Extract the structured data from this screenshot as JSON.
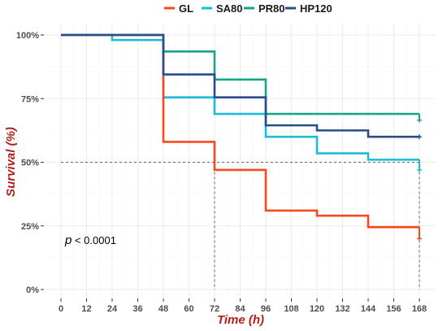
{
  "chart_data": {
    "type": "line",
    "subtype": "kaplan-meier step",
    "title": "",
    "xlabel": "Time (h)",
    "ylabel": "Survival (%)",
    "xlim": [
      0,
      168
    ],
    "ylim": [
      0,
      1
    ],
    "x_ticks": [
      0,
      12,
      24,
      36,
      48,
      60,
      72,
      84,
      96,
      108,
      120,
      132,
      144,
      156,
      168
    ],
    "x_tick_labels": [
      "0",
      "12",
      "24",
      "36",
      "48",
      "60",
      "72",
      "84",
      "96",
      "108",
      "120",
      "132",
      "144",
      "156",
      "168"
    ],
    "y_ticks": [
      0,
      0.25,
      0.5,
      0.75,
      1.0
    ],
    "y_tick_labels": [
      "0%",
      "25%",
      "50%",
      "75%",
      "100%"
    ],
    "grid": true,
    "legend_position": "top",
    "annotation": {
      "p_prefix": "p",
      "p_rest": " < 0.0001"
    },
    "median_reference": {
      "y": 0.5,
      "x_values": [
        72,
        168
      ]
    },
    "series": [
      {
        "name": "GL",
        "color": "#F8481C",
        "steps": [
          [
            0,
            1.0
          ],
          [
            48,
            0.58
          ],
          [
            72,
            0.47
          ],
          [
            96,
            0.31
          ],
          [
            120,
            0.29
          ],
          [
            144,
            0.245
          ],
          [
            168,
            0.245
          ]
        ],
        "censor_x": 168,
        "censor_y": 0.2
      },
      {
        "name": "SA80",
        "color": "#1BBCD8",
        "steps": [
          [
            0,
            1.0
          ],
          [
            24,
            0.98
          ],
          [
            48,
            0.755
          ],
          [
            72,
            0.69
          ],
          [
            96,
            0.6
          ],
          [
            120,
            0.535
          ],
          [
            144,
            0.51
          ],
          [
            168,
            0.51
          ]
        ],
        "censor_x": 168,
        "censor_y": 0.47
      },
      {
        "name": "PR80",
        "color": "#17A589",
        "steps": [
          [
            0,
            1.0
          ],
          [
            48,
            0.935
          ],
          [
            72,
            0.825
          ],
          [
            96,
            0.69
          ],
          [
            168,
            0.69
          ]
        ],
        "censor_x": 168,
        "censor_y": 0.665
      },
      {
        "name": "HP120",
        "color": "#2B4C8C",
        "steps": [
          [
            0,
            1.0
          ],
          [
            48,
            0.845
          ],
          [
            72,
            0.755
          ],
          [
            96,
            0.645
          ],
          [
            120,
            0.625
          ],
          [
            144,
            0.6
          ],
          [
            168,
            0.6
          ]
        ],
        "censor_x": 168,
        "censor_y": 0.6
      }
    ]
  }
}
